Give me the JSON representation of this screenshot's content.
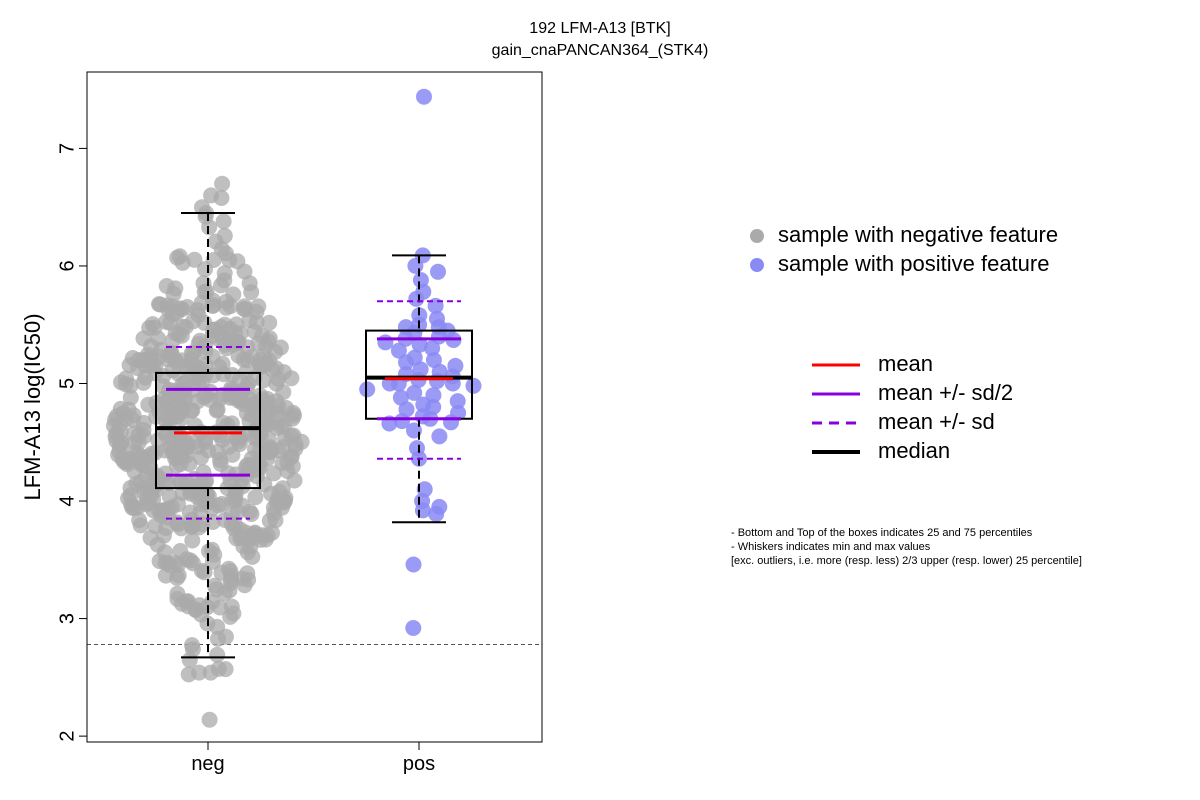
{
  "chart_data": {
    "type": "box",
    "title": "192 LFM-A13 [BTK]",
    "subtitle": "gain_cnaPANCAN364_(STK4)",
    "ylabel": "LFM-A13 log(IC50)",
    "xlabel": "",
    "ylim": [
      1.95,
      7.65
    ],
    "y_ticks": [
      "2",
      "3",
      "4",
      "5",
      "6",
      "7"
    ],
    "categories": [
      "neg",
      "pos"
    ],
    "threshold_line": 2.78,
    "grid": false,
    "boxes": [
      {
        "category": "neg",
        "color": "#aaaaaa",
        "q1": 4.11,
        "median": 4.62,
        "q3": 5.09,
        "whisker_low": 2.67,
        "whisker_high": 6.45,
        "mean": 4.58,
        "mean_minus_half_sd": 4.22,
        "mean_plus_half_sd": 4.95,
        "mean_minus_sd": 3.85,
        "mean_plus_sd": 5.31,
        "n_points": 600
      },
      {
        "category": "pos",
        "color": "#8a8af5",
        "q1": 4.7,
        "median": 5.05,
        "q3": 5.45,
        "whisker_low": 3.82,
        "whisker_high": 6.09,
        "mean": 5.04,
        "mean_minus_half_sd": 4.7,
        "mean_plus_half_sd": 5.38,
        "mean_minus_sd": 4.36,
        "mean_plus_sd": 5.7,
        "points": [
          7.44,
          6.09,
          6.0,
          5.95,
          5.88,
          5.78,
          5.72,
          5.66,
          5.58,
          5.55,
          5.5,
          5.48,
          5.48,
          5.45,
          5.43,
          5.4,
          5.38,
          5.37,
          5.35,
          5.33,
          5.3,
          5.28,
          5.22,
          5.2,
          5.18,
          5.15,
          5.12,
          5.1,
          5.08,
          5.06,
          5.03,
          5.02,
          5.0,
          5.0,
          5.0,
          4.98,
          4.95,
          4.92,
          4.9,
          4.88,
          4.85,
          4.82,
          4.8,
          4.78,
          4.75,
          4.72,
          4.7,
          4.68,
          4.67,
          4.66,
          4.6,
          4.55,
          4.45,
          4.36,
          4.1,
          4.0,
          3.95,
          3.92,
          3.89,
          3.46,
          2.92
        ]
      }
    ],
    "legend": {
      "placement": "right",
      "points": [
        {
          "label": "sample with negative feature",
          "color": "#aaaaaa"
        },
        {
          "label": "sample with positive feature",
          "color": "#8a8af5"
        }
      ],
      "lines": [
        {
          "label": "mean",
          "color": "#ff0000",
          "style": "solid"
        },
        {
          "label": "mean +/- sd/2",
          "color": "#8800dd",
          "style": "solid"
        },
        {
          "label": "mean +/- sd",
          "color": "#8800dd",
          "style": "dashed"
        },
        {
          "label": "median",
          "color": "#000000",
          "style": "solid"
        }
      ]
    },
    "notes": [
      "- Bottom and Top of the boxes indicates 25 and 75 percentiles",
      "- Whiskers indicates min and max values",
      "[exc. outliers, i.e. more (resp. less) 2/3 upper (resp. lower) 25 percentile]"
    ]
  }
}
